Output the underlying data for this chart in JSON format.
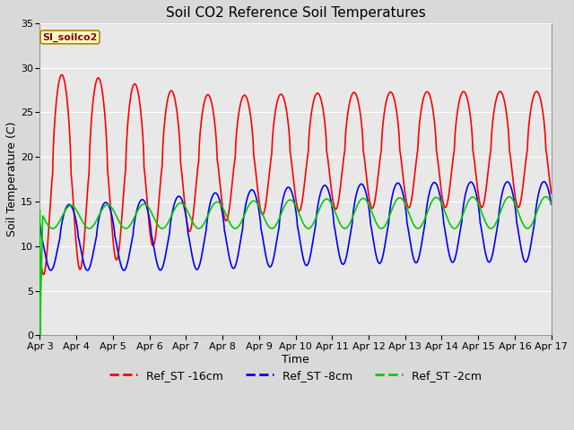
{
  "title": "Soil CO2 Reference Soil Temperatures",
  "xlabel": "Time",
  "ylabel": "Soil Temperature (C)",
  "ylim": [
    0,
    35
  ],
  "xlim": [
    0,
    14
  ],
  "xtick_labels": [
    "Apr 3",
    "Apr 4",
    "Apr 5",
    "Apr 6",
    "Apr 7",
    "Apr 8",
    "Apr 9",
    "Apr 10",
    "Apr 11",
    "Apr 12",
    "Apr 13",
    "Apr 14",
    "Apr 15",
    "Apr 16",
    "Apr 17"
  ],
  "xtick_positions": [
    0,
    1,
    2,
    3,
    4,
    5,
    6,
    7,
    8,
    9,
    10,
    11,
    12,
    13,
    14
  ],
  "ytick_positions": [
    0,
    5,
    10,
    15,
    20,
    25,
    30,
    35
  ],
  "fig_bg_color": "#d9d9d9",
  "plot_bg_color": "#e8e8e8",
  "grid_color": "#ffffff",
  "annotation_text": "SI_soilco2",
  "annotation_bg": "#ffffcc",
  "annotation_border": "#aa8800",
  "line_colors": [
    "#ff0000",
    "#0000ff",
    "#00cc00"
  ],
  "line_labels": [
    "Ref_ST -16cm",
    "Ref_ST -8cm",
    "Ref_ST -2cm"
  ],
  "line_width": 1.2,
  "title_fontsize": 11,
  "axis_label_fontsize": 9,
  "tick_fontsize": 8,
  "legend_fontsize": 9
}
